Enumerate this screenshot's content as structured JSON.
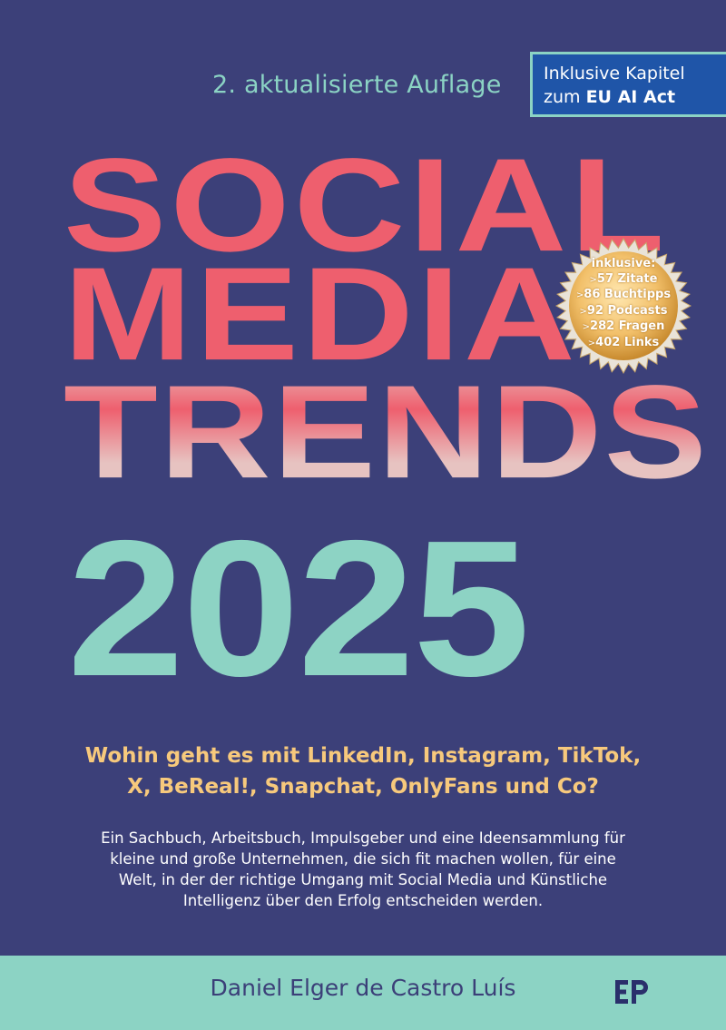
{
  "edition": "2. aktualisierte Auflage",
  "ai_badge": {
    "line1": "Inklusive Kapitel",
    "line2_prefix": "zum ",
    "line2_bold": "EU AI Act"
  },
  "title": {
    "line1": "SOCIAL",
    "line2": "MEDIA",
    "line3": "TRENDS",
    "year": "2025"
  },
  "seal": {
    "heading": "inklusive:",
    "items": [
      {
        "prefix": ">",
        "number": "57",
        "label": "Zitate"
      },
      {
        "prefix": ">",
        "number": "86",
        "label": "Buchtipps"
      },
      {
        "prefix": ">",
        "number": "92",
        "label": "Podcasts"
      },
      {
        "prefix": ">",
        "number": "282",
        "label": "Fragen"
      },
      {
        "prefix": ">",
        "number": "402",
        "label": "Links"
      }
    ]
  },
  "question": {
    "line1": "Wohin geht es mit LinkedIn, Instagram, TikTok,",
    "line2": "X, BeReal!, Snapchat, OnlyFans und Co?"
  },
  "blurb": {
    "line1": "Ein Sachbuch, Arbeitsbuch, Impulsgeber und eine Ideensammlung für",
    "line2": "kleine und große Unternehmen, die sich fit machen wollen, für eine",
    "line3": "Welt, in der der richtige Umgang mit Social Media und Künstliche",
    "line4": "Intelligenz über den Erfolg entscheiden werden."
  },
  "author": "Daniel Elger de Castro Luís",
  "publisher_logo": "EP-logo-icon",
  "colors": {
    "background": "#3c4079",
    "coral": "#ee5f6e",
    "mint": "#8dd3c4",
    "gold": "#f7c97c",
    "blue_badge": "#1f55a8"
  }
}
